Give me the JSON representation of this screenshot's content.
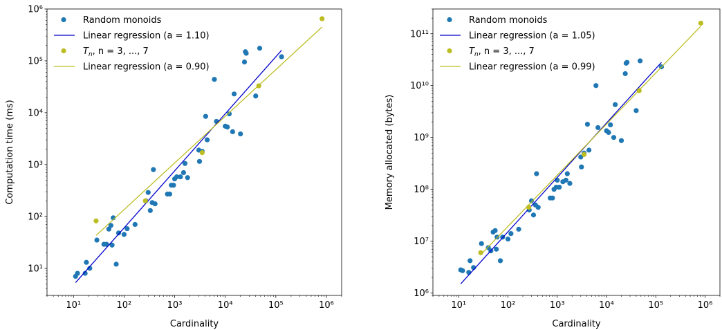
{
  "chart_data": [
    {
      "type": "scatter",
      "xlabel": "Cardinality",
      "ylabel": "Computation time (ms)",
      "x_scale": "log",
      "y_scale": "log",
      "xlim": [
        3,
        2000000
      ],
      "ylim": [
        3,
        1000000
      ],
      "x_ticks": [
        10,
        100,
        1000,
        10000,
        100000,
        1000000
      ],
      "y_ticks": [
        10,
        100,
        1000,
        10000,
        100000,
        1000000
      ],
      "grid": false,
      "legend_position": "top-left",
      "series": [
        {
          "name": "Random monoids",
          "kind": "scatter",
          "color": "#1f77b4",
          "points": [
            [
              11,
              7
            ],
            [
              12,
              8
            ],
            [
              17,
              8
            ],
            [
              18,
              13
            ],
            [
              21,
              10
            ],
            [
              29,
              35
            ],
            [
              40,
              29
            ],
            [
              45,
              29
            ],
            [
              50,
              57
            ],
            [
              55,
              67
            ],
            [
              58,
              28
            ],
            [
              61,
              94
            ],
            [
              70,
              12
            ],
            [
              78,
              48
            ],
            [
              100,
              45
            ],
            [
              115,
              58
            ],
            [
              165,
              70
            ],
            [
              270,
              200
            ],
            [
              300,
              290
            ],
            [
              330,
              130
            ],
            [
              360,
              185
            ],
            [
              380,
              800
            ],
            [
              410,
              175
            ],
            [
              720,
              270
            ],
            [
              800,
              270
            ],
            [
              860,
              400
            ],
            [
              950,
              400
            ],
            [
              1000,
              530
            ],
            [
              1100,
              580
            ],
            [
              1300,
              580
            ],
            [
              1500,
              700
            ],
            [
              1600,
              1050
            ],
            [
              1800,
              560
            ],
            [
              3000,
              1900
            ],
            [
              3100,
              1150
            ],
            [
              3500,
              1800
            ],
            [
              4100,
              8500
            ],
            [
              4400,
              3000
            ],
            [
              6100,
              44000
            ],
            [
              6700,
              6800
            ],
            [
              10000,
              5500
            ],
            [
              11000,
              5300
            ],
            [
              12000,
              9500
            ],
            [
              14000,
              4300
            ],
            [
              15000,
              23000
            ],
            [
              20000,
              3900
            ],
            [
              24000,
              95000
            ],
            [
              25000,
              150000
            ],
            [
              26000,
              140000
            ],
            [
              40000,
              21000
            ],
            [
              48000,
              175000
            ],
            [
              130000,
              120000
            ]
          ]
        },
        {
          "name": "Linear regression (a = 1.10)",
          "kind": "line",
          "color": "#0000cc",
          "points": [
            [
              11,
              5.3
            ],
            [
              130000,
              160000
            ]
          ]
        },
        {
          "name": "T_n, n = 3, ..., 7",
          "kind": "scatter",
          "color": "#bcbd22",
          "points": [
            [
              28,
              82
            ],
            [
              264,
              200
            ],
            [
              3500,
              1700
            ],
            [
              46000,
              33000
            ],
            [
              820000,
              650000
            ]
          ]
        },
        {
          "name": "Linear regression (a = 0.90)",
          "kind": "line",
          "color": "#bcbd22",
          "points": [
            [
              28,
              43
            ],
            [
              820000,
              450000
            ]
          ]
        }
      ]
    },
    {
      "type": "scatter",
      "xlabel": "Cardinality",
      "ylabel": "Memory allocated (bytes)",
      "x_scale": "log",
      "y_scale": "log",
      "xlim": [
        3,
        2000000
      ],
      "ylim": [
        900000,
        300000000000
      ],
      "x_ticks": [
        10,
        100,
        1000,
        10000,
        100000,
        1000000
      ],
      "y_ticks": [
        1000000,
        10000000,
        100000000,
        1000000000,
        10000000000,
        100000000000
      ],
      "grid": false,
      "legend_position": "top-left",
      "series": [
        {
          "name": "Random monoids",
          "kind": "scatter",
          "color": "#1f77b4",
          "points": [
            [
              11,
              2800000
            ],
            [
              12,
              2700000
            ],
            [
              16,
              2500000
            ],
            [
              17,
              4200000
            ],
            [
              20,
              3100000
            ],
            [
              29,
              9000000
            ],
            [
              40,
              7500000
            ],
            [
              45,
              6500000
            ],
            [
              50,
              15000000
            ],
            [
              55,
              16000000
            ],
            [
              58,
              7000000
            ],
            [
              60,
              12000000
            ],
            [
              70,
              4200000
            ],
            [
              78,
              12000000
            ],
            [
              100,
              11000000
            ],
            [
              115,
              14000000
            ],
            [
              165,
              17000000
            ],
            [
              270,
              40000000
            ],
            [
              300,
              60000000
            ],
            [
              330,
              32000000
            ],
            [
              360,
              50000000
            ],
            [
              380,
              200000000
            ],
            [
              410,
              45000000
            ],
            [
              720,
              68000000
            ],
            [
              800,
              68000000
            ],
            [
              860,
              100000000
            ],
            [
              950,
              110000000
            ],
            [
              1000,
              150000000
            ],
            [
              1100,
              110000000
            ],
            [
              1300,
              140000000
            ],
            [
              1500,
              150000000
            ],
            [
              1600,
              200000000
            ],
            [
              1800,
              130000000
            ],
            [
              3000,
              420000000
            ],
            [
              3100,
              270000000
            ],
            [
              3500,
              500000000
            ],
            [
              4100,
              1800000000
            ],
            [
              4400,
              570000000
            ],
            [
              6100,
              10000000000
            ],
            [
              6700,
              1550000000
            ],
            [
              10000,
              1350000000
            ],
            [
              11000,
              1250000000
            ],
            [
              12000,
              1750000000
            ],
            [
              14000,
              1000000000
            ],
            [
              15000,
              4300000000
            ],
            [
              20000,
              870000000
            ],
            [
              24000,
              17000000000
            ],
            [
              25000,
              27000000000
            ],
            [
              26000,
              28000000000
            ],
            [
              40000,
              3300000000
            ],
            [
              48000,
              30000000000
            ],
            [
              130000,
              23000000000
            ]
          ]
        },
        {
          "name": "Linear regression (a = 1.05)",
          "kind": "line",
          "color": "#0000cc",
          "points": [
            [
              11,
              1500000
            ],
            [
              130000,
              28000000000
            ]
          ]
        },
        {
          "name": "T_n, n = 3, ..., 7",
          "kind": "scatter",
          "color": "#bcbd22",
          "points": [
            [
              28,
              6000000
            ],
            [
              264,
              45000000
            ],
            [
              3500,
              470000000
            ],
            [
              46000,
              8000000000
            ],
            [
              820000,
              160000000000
            ]
          ]
        },
        {
          "name": "Linear regression (a = 0.99)",
          "kind": "line",
          "color": "#bcbd22",
          "points": [
            [
              28,
              5500000
            ],
            [
              820000,
              140000000000
            ]
          ]
        }
      ]
    }
  ]
}
